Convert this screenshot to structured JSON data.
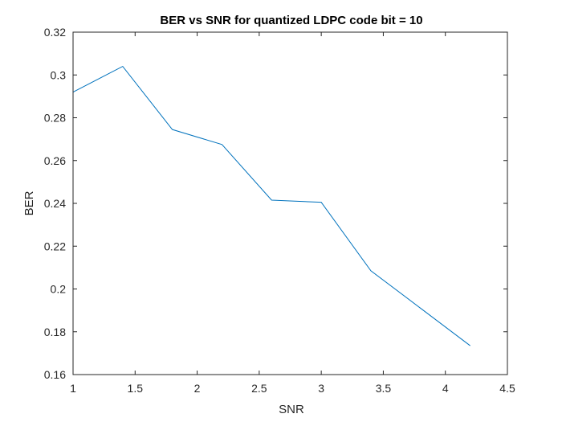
{
  "chart_data": {
    "type": "line",
    "title": "BER vs SNR for quantized LDPC code bit = 10",
    "xlabel": "SNR",
    "ylabel": "BER",
    "xlim": [
      1,
      4.5
    ],
    "ylim": [
      0.16,
      0.32
    ],
    "xticks": [
      1,
      1.5,
      2,
      2.5,
      3,
      3.5,
      4,
      4.5
    ],
    "xtick_labels": [
      "1",
      "1.5",
      "2",
      "2.5",
      "3",
      "3.5",
      "4",
      "4.5"
    ],
    "yticks": [
      0.16,
      0.18,
      0.2,
      0.22,
      0.24,
      0.26,
      0.28,
      0.3,
      0.32
    ],
    "ytick_labels": [
      "0.16",
      "0.18",
      "0.2",
      "0.22",
      "0.24",
      "0.26",
      "0.28",
      "0.3",
      "0.32"
    ],
    "grid": false,
    "legend": "none",
    "series": [
      {
        "color": "#0072BD",
        "x": [
          1.0,
          1.4,
          1.8,
          2.2,
          2.6,
          3.0,
          3.4,
          3.8,
          4.2
        ],
        "y": [
          0.292,
          0.304,
          0.2745,
          0.2675,
          0.2415,
          0.2405,
          0.2085,
          0.191,
          0.1735
        ]
      }
    ]
  }
}
